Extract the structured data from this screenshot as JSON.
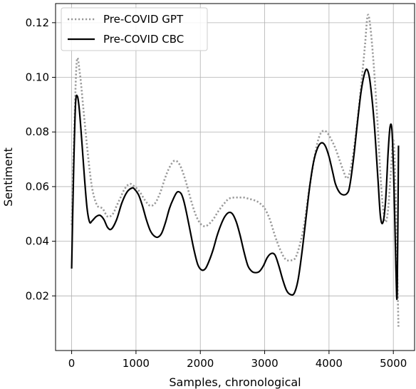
{
  "chart_data": {
    "type": "line",
    "title": "",
    "xlabel": "Samples, chronological",
    "ylabel": "Sentiment",
    "xlim": [
      -250,
      5330
    ],
    "ylim": [
      0.0,
      0.127
    ],
    "xticks": [
      0,
      1000,
      2000,
      3000,
      4000,
      5000
    ],
    "yticks": [
      0.02,
      0.04,
      0.06,
      0.08,
      0.1,
      0.12
    ],
    "ytick_labels": [
      "0.02",
      "0.04",
      "0.06",
      "0.08",
      "0.10",
      "0.12"
    ],
    "grid": true,
    "legend_position": "top-left",
    "series": [
      {
        "name": "Pre-COVID GPT",
        "style": "dotted",
        "color": "#999999",
        "x": [
          0,
          40,
          80,
          130,
          180,
          230,
          280,
          330,
          400,
          480,
          560,
          640,
          700,
          760,
          820,
          900,
          980,
          1060,
          1140,
          1220,
          1300,
          1380,
          1450,
          1520,
          1600,
          1680,
          1760,
          1820,
          1880,
          1940,
          2000,
          2060,
          2120,
          2200,
          2280,
          2360,
          2440,
          2520,
          2600,
          2680,
          2760,
          2840,
          2920,
          3000,
          3080,
          3160,
          3240,
          3320,
          3400,
          3480,
          3560,
          3620,
          3680,
          3740,
          3800,
          3860,
          3920,
          3980,
          4040,
          4100,
          4160,
          4220,
          4280,
          4340,
          4400,
          4460,
          4520,
          4560,
          4600,
          4640,
          4700,
          4760,
          4800,
          4840,
          4880,
          4920,
          4960,
          5000,
          5030,
          5060,
          5080
        ],
        "y": [
          0.046,
          0.08,
          0.106,
          0.101,
          0.089,
          0.077,
          0.066,
          0.058,
          0.053,
          0.052,
          0.049,
          0.05,
          0.053,
          0.056,
          0.059,
          0.061,
          0.06,
          0.058,
          0.055,
          0.053,
          0.054,
          0.058,
          0.063,
          0.067,
          0.0695,
          0.068,
          0.063,
          0.058,
          0.053,
          0.049,
          0.0465,
          0.0455,
          0.046,
          0.048,
          0.051,
          0.0535,
          0.0555,
          0.056,
          0.056,
          0.056,
          0.0555,
          0.055,
          0.054,
          0.052,
          0.048,
          0.042,
          0.037,
          0.0335,
          0.033,
          0.034,
          0.04,
          0.047,
          0.057,
          0.066,
          0.074,
          0.079,
          0.0805,
          0.0795,
          0.077,
          0.074,
          0.07,
          0.066,
          0.063,
          0.067,
          0.076,
          0.088,
          0.102,
          0.112,
          0.1225,
          0.119,
          0.103,
          0.081,
          0.064,
          0.052,
          0.047,
          0.052,
          0.065,
          0.077,
          0.063,
          0.03,
          0.008
        ]
      },
      {
        "name": "Pre-COVID CBC",
        "style": "solid",
        "color": "#000000",
        "x": [
          0,
          30,
          60,
          90,
          120,
          160,
          200,
          240,
          280,
          320,
          380,
          440,
          500,
          560,
          620,
          700,
          780,
          860,
          940,
          980,
          1040,
          1100,
          1160,
          1220,
          1280,
          1340,
          1400,
          1460,
          1520,
          1580,
          1640,
          1700,
          1740,
          1780,
          1840,
          1900,
          1960,
          2020,
          2080,
          2140,
          2200,
          2260,
          2320,
          2380,
          2440,
          2500,
          2560,
          2620,
          2680,
          2740,
          2800,
          2860,
          2920,
          2980,
          3040,
          3100,
          3160,
          3220,
          3280,
          3340,
          3400,
          3460,
          3520,
          3580,
          3640,
          3700,
          3760,
          3820,
          3880,
          3940,
          4000,
          4060,
          4100,
          4160,
          4220,
          4280,
          4320,
          4380,
          4440,
          4500,
          4560,
          4600,
          4640,
          4700,
          4760,
          4800,
          4840,
          4880,
          4920,
          4950,
          4980,
          5010,
          5040,
          5060,
          5080
        ],
        "y": [
          0.03,
          0.065,
          0.09,
          0.093,
          0.088,
          0.076,
          0.063,
          0.052,
          0.047,
          0.0475,
          0.049,
          0.0495,
          0.048,
          0.045,
          0.0445,
          0.048,
          0.054,
          0.058,
          0.0595,
          0.059,
          0.057,
          0.053,
          0.048,
          0.044,
          0.042,
          0.0415,
          0.043,
          0.047,
          0.052,
          0.0555,
          0.058,
          0.0575,
          0.055,
          0.051,
          0.044,
          0.037,
          0.0315,
          0.0295,
          0.03,
          0.033,
          0.037,
          0.042,
          0.046,
          0.049,
          0.0505,
          0.05,
          0.047,
          0.042,
          0.036,
          0.031,
          0.029,
          0.0285,
          0.029,
          0.031,
          0.034,
          0.0355,
          0.035,
          0.031,
          0.026,
          0.022,
          0.0205,
          0.021,
          0.026,
          0.036,
          0.048,
          0.06,
          0.069,
          0.074,
          0.076,
          0.075,
          0.071,
          0.065,
          0.061,
          0.058,
          0.057,
          0.0575,
          0.06,
          0.07,
          0.083,
          0.095,
          0.102,
          0.1025,
          0.098,
          0.084,
          0.063,
          0.049,
          0.047,
          0.055,
          0.073,
          0.082,
          0.08,
          0.06,
          0.03,
          0.0215,
          0.075
        ]
      }
    ]
  }
}
